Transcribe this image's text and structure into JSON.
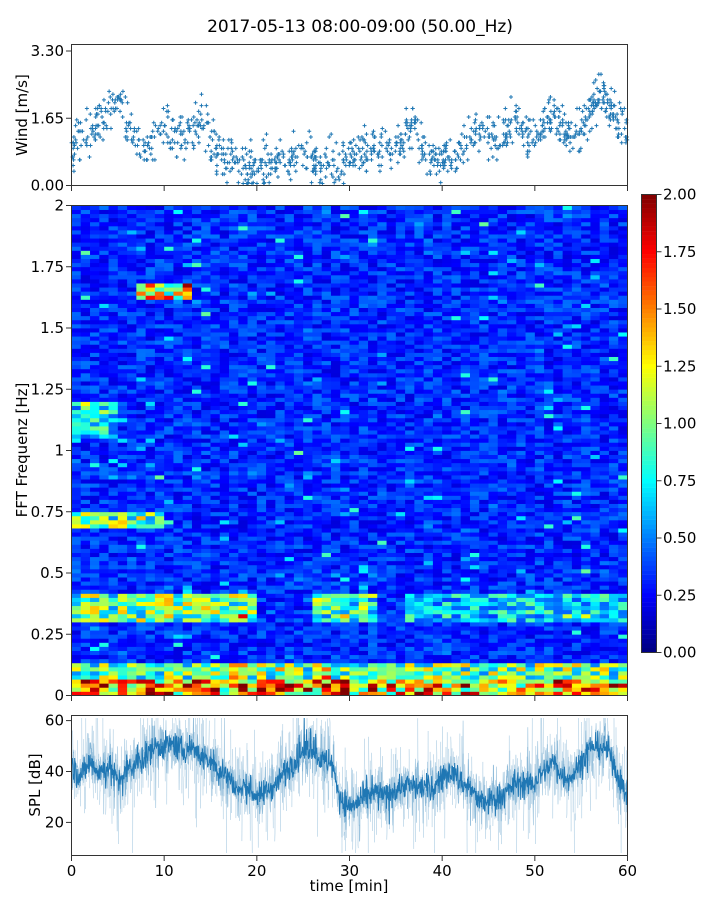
{
  "chart_data": [
    {
      "type": "scatter",
      "title": "2017-05-13 08:00-09:00 (50.00_Hz)",
      "ylabel": "Wind [m/s]",
      "xlabel": "",
      "xlim": [
        0,
        60
      ],
      "ylim": [
        0,
        3.3
      ],
      "yticks": [
        "0.00",
        "1.65",
        "3.30"
      ],
      "xticks": [
        0,
        10,
        20,
        30,
        40,
        50,
        60
      ],
      "marker": "+",
      "color": "#1f77b4",
      "minute_mean_wind": [
        0.9,
        1.1,
        1.3,
        1.6,
        1.9,
        2.1,
        1.5,
        1.2,
        0.8,
        1.0,
        1.5,
        1.2,
        1.1,
        1.4,
        1.6,
        1.1,
        0.8,
        0.6,
        0.4,
        0.5,
        0.4,
        0.5,
        0.6,
        0.7,
        0.6,
        0.7,
        0.6,
        0.5,
        0.6,
        0.5,
        0.7,
        0.8,
        0.8,
        0.9,
        0.9,
        0.8,
        1.3,
        1.6,
        0.8,
        0.6,
        0.6,
        0.7,
        0.8,
        1.2,
        1.5,
        1.3,
        1.2,
        1.4,
        1.7,
        1.2,
        1.3,
        1.6,
        1.8,
        1.5,
        1.2,
        1.5,
        1.8,
        2.4,
        1.9,
        1.5,
        1.4
      ]
    },
    {
      "type": "heatmap",
      "ylabel": "FFT Frequenz [Hz]",
      "xlim": [
        0,
        60
      ],
      "ylim": [
        0,
        2
      ],
      "yticks": [
        "0",
        "0.25",
        "0.5",
        "0.75",
        "1",
        "1.25",
        "1.5",
        "1.75",
        "2"
      ],
      "colormap": "jet",
      "clim": [
        0,
        2
      ],
      "colorbar_ticks": [
        "0.00",
        "0.25",
        "0.50",
        "0.75",
        "1.00",
        "1.25",
        "1.50",
        "1.75",
        "2.00"
      ],
      "time_bins": 60,
      "freq_bins": 120,
      "background_level": 0.3,
      "features": [
        {
          "freq": [
            0,
            0.06
          ],
          "time": [
            0,
            60
          ],
          "level": 1.5
        },
        {
          "freq": [
            0.06,
            0.14
          ],
          "time": [
            0,
            60
          ],
          "level": 1.0
        },
        {
          "freq": [
            0.3,
            0.42
          ],
          "time": [
            0,
            20
          ],
          "level": 1.0
        },
        {
          "freq": [
            0.3,
            0.42
          ],
          "time": [
            26,
            33
          ],
          "level": 0.9
        },
        {
          "freq": [
            0.3,
            0.42
          ],
          "time": [
            36,
            60
          ],
          "level": 0.7
        },
        {
          "freq": [
            0.68,
            0.75
          ],
          "time": [
            0,
            10
          ],
          "level": 1.0
        },
        {
          "freq": [
            1.62,
            1.68
          ],
          "time": [
            7,
            13
          ],
          "level": 1.3
        },
        {
          "freq": [
            1.05,
            1.2
          ],
          "time": [
            0,
            5
          ],
          "level": 0.8
        }
      ]
    },
    {
      "type": "line",
      "ylabel": "SPL [dB]",
      "xlabel": "time [min]",
      "xlim": [
        0,
        60
      ],
      "ylim": [
        7,
        62
      ],
      "yticks": [
        20,
        40,
        60
      ],
      "xticks": [
        "0",
        "10",
        "20",
        "30",
        "40",
        "50",
        "60"
      ],
      "color": "#1f77b4",
      "minute_mean_spl": [
        42,
        38,
        44,
        40,
        42,
        36,
        40,
        43,
        46,
        50,
        50,
        51,
        48,
        50,
        46,
        44,
        40,
        38,
        32,
        34,
        30,
        32,
        35,
        40,
        44,
        48,
        50,
        44,
        44,
        30,
        26,
        28,
        30,
        32,
        30,
        33,
        35,
        34,
        34,
        33,
        38,
        40,
        36,
        34,
        28,
        28,
        30,
        32,
        36,
        34,
        36,
        40,
        44,
        38,
        38,
        44,
        50,
        50,
        48,
        38,
        30
      ]
    }
  ]
}
